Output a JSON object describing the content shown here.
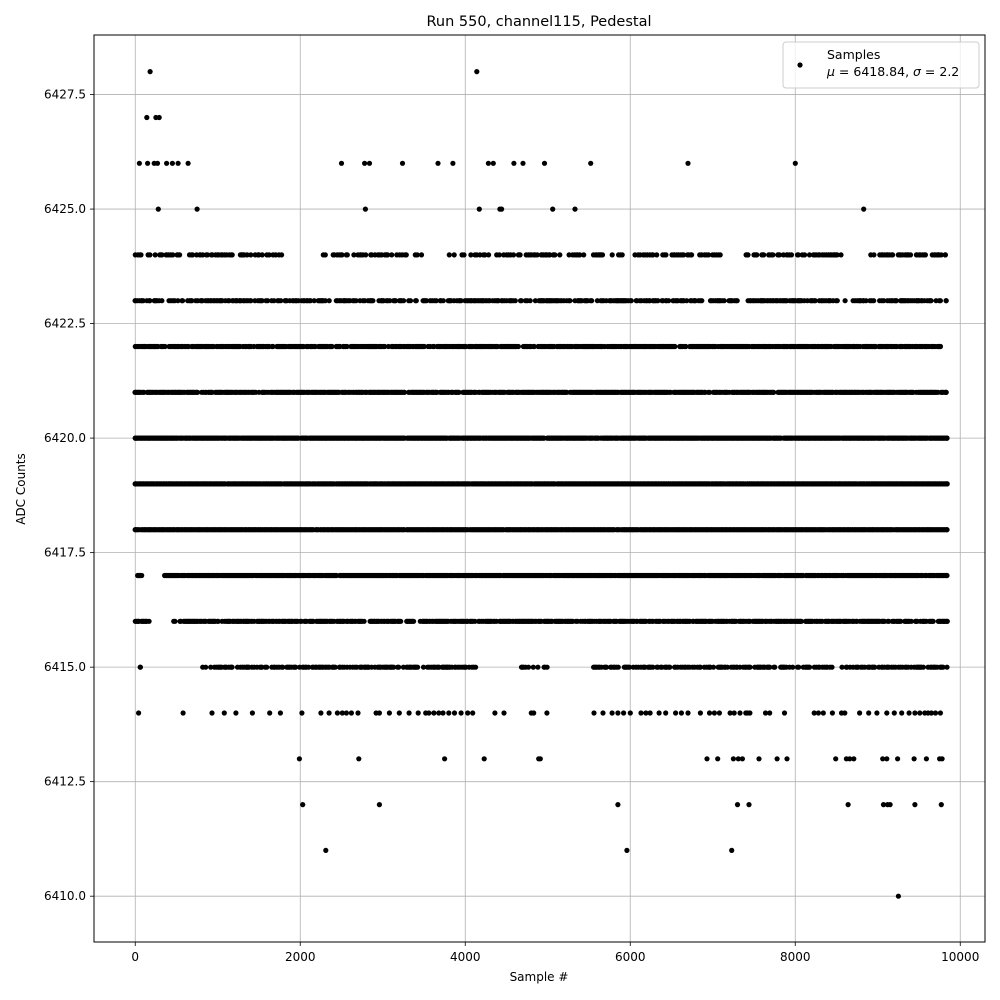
{
  "chart_data": {
    "type": "scatter",
    "title": "Run 550, channel115, Pedestal",
    "xlabel": "Sample #",
    "ylabel": "ADC Counts",
    "xlim": [
      -500,
      10300
    ],
    "ylim": [
      6409.0,
      6428.8
    ],
    "grid": true,
    "legend_position": "top-right",
    "x_ticks": [
      0,
      2000,
      4000,
      6000,
      8000,
      10000
    ],
    "x_tick_labels": [
      "0",
      "2000",
      "4000",
      "6000",
      "8000",
      "10000"
    ],
    "y_ticks": [
      6410.0,
      6412.5,
      6415.0,
      6417.5,
      6420.0,
      6422.5,
      6425.0,
      6427.5
    ],
    "y_tick_labels": [
      "6410.0",
      "6412.5",
      "6415.0",
      "6417.5",
      "6420.0",
      "6422.5",
      "6425.0",
      "6427.5"
    ],
    "marker_color": "#000000",
    "legend": {
      "series_name": "Samples",
      "stats_mu_symbol": "μ",
      "stats_mu_text": " = 6418.84, ",
      "stats_sigma_symbol": "σ",
      "stats_sigma_text": " = 2.2"
    },
    "stats": {
      "mu": 6418.84,
      "sigma": 2.2
    },
    "series": [
      {
        "name": "Samples",
        "bands": [
          {
            "y": 6428,
            "x": [
              180,
              4140
            ]
          },
          {
            "y": 6427,
            "x": [
              140,
              250,
              290
            ]
          },
          {
            "y": 6426,
            "x": [
              50,
              150,
              230,
              270,
              380,
              450,
              520,
              640,
              2500,
              2780,
              2840,
              3240,
              3670,
              3850,
              4280,
              4340,
              4590,
              4700,
              4960,
              5520,
              6700,
              8000
            ]
          },
          {
            "y": 6425,
            "x": [
              280,
              750,
              2790,
              4170,
              4420,
              4440,
              5060,
              5330,
              8830
            ]
          },
          {
            "y": 6414,
            "x": [
              40,
              580,
              930,
              1080,
              1220,
              1420,
              1630,
              1760,
              2020,
              2250,
              2350,
              2450,
              2510,
              2560,
              2620,
              2700,
              2920,
              2960,
              3080,
              3200,
              3320,
              3430,
              3520,
              3560,
              3620,
              3680,
              3730,
              3800,
              3870,
              3950,
              4030,
              4090,
              4360,
              4470,
              4800,
              4830,
              4990,
              5560,
              5670,
              5780,
              5850,
              5920,
              6000,
              6130,
              6190,
              6240,
              6350,
              6430,
              6550,
              6620,
              6700,
              6850,
              6960,
              7020,
              7080,
              7210,
              7260,
              7330,
              7400,
              7420,
              7450,
              7640,
              7690,
              7870,
              8230,
              8280,
              8340,
              8450,
              8560,
              8600,
              8780,
              8890,
              8990,
              9110,
              9200,
              9290,
              9380,
              9450,
              9510,
              9570,
              9610,
              9650,
              9700,
              9760
            ]
          },
          {
            "y": 6413,
            "x": [
              1990,
              2710,
              3750,
              4230,
              4890,
              4910,
              6930,
              7060,
              7250,
              7310,
              7360,
              7560,
              7780,
              7900,
              8490,
              8620,
              8660,
              8710,
              9060,
              9110,
              9240,
              9440,
              9590,
              9750,
              9780
            ]
          },
          {
            "y": 6412,
            "x": [
              2030,
              2960,
              5850,
              7300,
              7440,
              8640,
              9070,
              9120,
              9150,
              9450,
              9770
            ]
          },
          {
            "y": 6411,
            "x": [
              2310,
              5960,
              7230
            ]
          },
          {
            "y": 6410,
            "x": [
              9250
            ]
          }
        ],
        "dense_bands": [
          {
            "y": 6424,
            "density": 0.35,
            "gaps": [
              [
                1800,
                2270
              ],
              [
                3500,
                3800
              ],
              [
                7100,
                7400
              ],
              [
                8600,
                8800
              ]
            ],
            "xmin": 0,
            "xmax": 9820
          },
          {
            "y": 6423,
            "density": 0.55,
            "gaps": [
              [
                7300,
                7420
              ]
            ],
            "xmin": 0,
            "xmax": 9830
          },
          {
            "y": 6422,
            "density": 0.75,
            "gaps": [],
            "xmin": 0,
            "xmax": 9760
          },
          {
            "y": 6421,
            "density": 0.85,
            "gaps": [],
            "xmin": 0,
            "xmax": 9830
          },
          {
            "y": 6420,
            "density": 0.95,
            "gaps": [],
            "xmin": 0,
            "xmax": 9840
          },
          {
            "y": 6419,
            "density": 0.98,
            "gaps": [],
            "xmin": 0,
            "xmax": 9840
          },
          {
            "y": 6418,
            "density": 0.98,
            "gaps": [],
            "xmin": 0,
            "xmax": 9840
          },
          {
            "y": 6417,
            "density": 0.92,
            "gaps": [
              [
                80,
                350
              ]
            ],
            "xmin": 30,
            "xmax": 9840
          },
          {
            "y": 6416,
            "density": 0.75,
            "gaps": [
              [
                180,
                460
              ],
              [
                2780,
                2840
              ]
            ],
            "xmin": 0,
            "xmax": 9840
          },
          {
            "y": 6415,
            "density": 0.5,
            "gaps": [
              [
                80,
                780
              ],
              [
                4150,
                4660
              ],
              [
                5000,
                5520
              ]
            ],
            "xmin": 60,
            "xmax": 9840
          }
        ]
      }
    ]
  }
}
